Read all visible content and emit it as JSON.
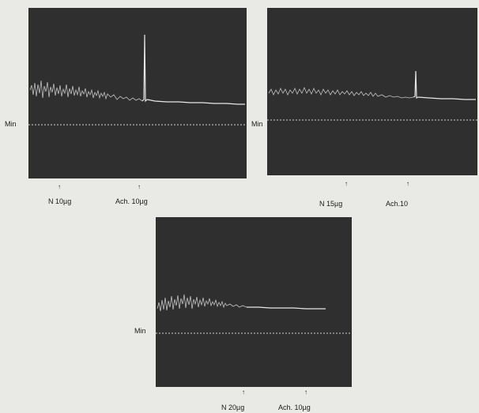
{
  "panels": [
    {
      "min_label": "Min",
      "markers": [
        {
          "arrow": "↑",
          "label": "N 10µg"
        },
        {
          "arrow": "↑",
          "label": "Ach. 10µg"
        }
      ]
    },
    {
      "min_label": "Min",
      "markers": [
        {
          "arrow": "↑",
          "label": "N 15µg"
        },
        {
          "arrow": "↑",
          "label": "Ach.10"
        }
      ]
    },
    {
      "min_label": "Min",
      "markers": [
        {
          "arrow": "↑",
          "label": "N 20µg"
        },
        {
          "arrow": "↑",
          "label": "Ach. 10µg"
        }
      ]
    }
  ]
}
